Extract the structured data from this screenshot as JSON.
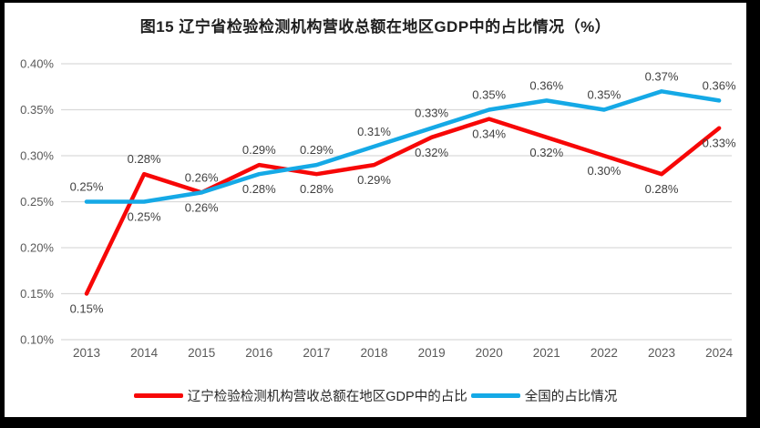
{
  "title": "图15 辽宁省检验检测机构营收总额在地区GDP中的占比情况（%）",
  "chart_data": {
    "type": "line",
    "title": "图15 辽宁省检验检测机构营收总额在地区GDP中的占比情况（%）",
    "x": [
      "2013",
      "2014",
      "2015",
      "2016",
      "2017",
      "2018",
      "2019",
      "2020",
      "2021",
      "2022",
      "2023",
      "2024"
    ],
    "series": [
      {
        "name": "辽宁检验检测机构营收总额在地区GDP中的占比",
        "color": "#F70707",
        "values": [
          0.15,
          0.28,
          0.26,
          0.29,
          0.28,
          0.29,
          0.32,
          0.34,
          0.32,
          0.3,
          0.28,
          0.33
        ],
        "labels": [
          "0.15%",
          "0.28%",
          "0.26%",
          "0.29%",
          "0.28%",
          "0.29%",
          "0.32%",
          "0.34%",
          "0.32%",
          "0.30%",
          "0.28%",
          "0.33%"
        ]
      },
      {
        "name": "全国的占比情况",
        "color": "#15A9E6",
        "values": [
          0.25,
          0.25,
          0.26,
          0.28,
          0.29,
          0.31,
          0.33,
          0.35,
          0.36,
          0.35,
          0.37,
          0.36
        ],
        "labels": [
          "0.25%",
          "0.25%",
          "0.26%",
          "0.28%",
          "0.29%",
          "0.31%",
          "0.33%",
          "0.35%",
          "0.36%",
          "0.35%",
          "0.37%",
          "0.36%"
        ]
      }
    ],
    "y_ticks": [
      "0.40%",
      "0.35%",
      "0.30%",
      "0.25%",
      "0.20%",
      "0.15%",
      "0.10%"
    ],
    "ylim": [
      0.1,
      0.4
    ],
    "value_suffix": "%",
    "grid": true,
    "data_labels": true,
    "legend_position": "bottom",
    "xlabel": "",
    "ylabel": ""
  }
}
